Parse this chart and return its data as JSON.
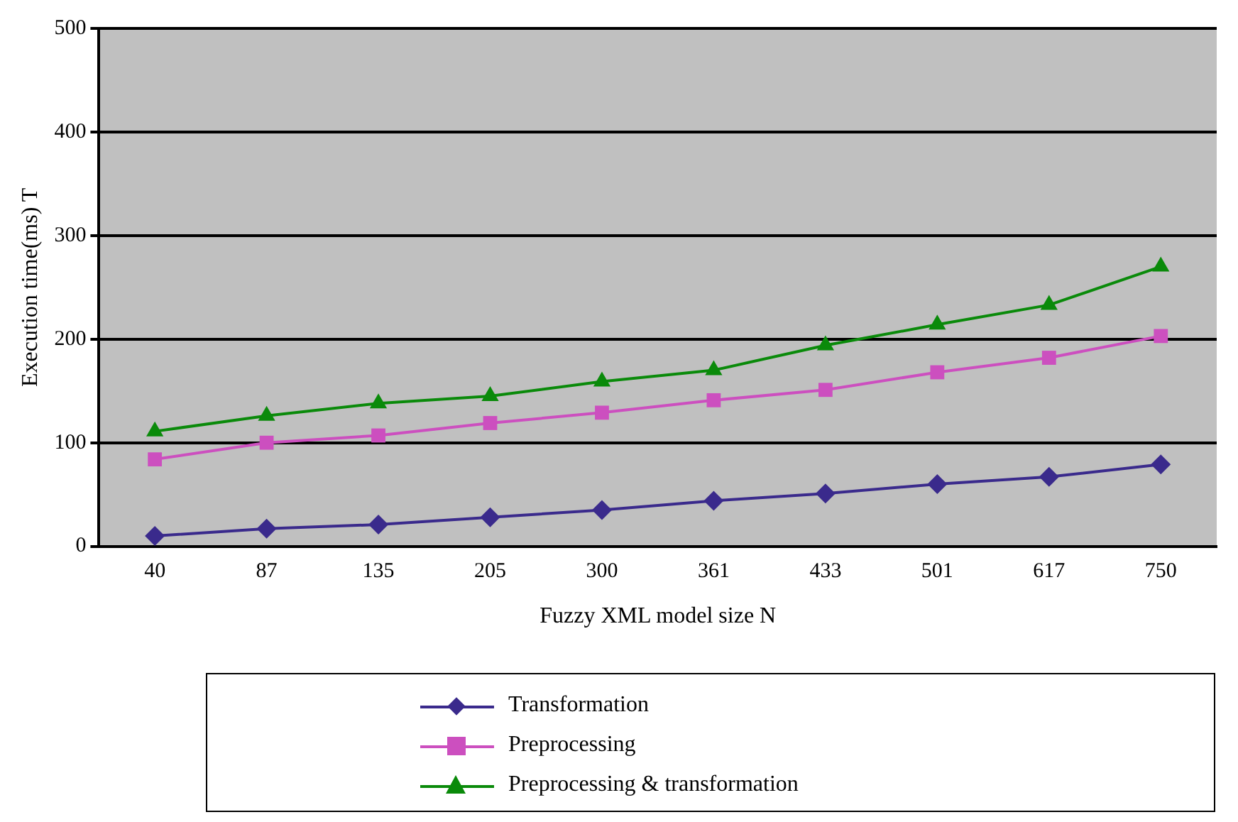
{
  "chart_data": {
    "type": "line",
    "xlabel": "Fuzzy XML model size N",
    "ylabel": "Execution time(ms) T",
    "categories": [
      "40",
      "87",
      "135",
      "205",
      "300",
      "361",
      "433",
      "501",
      "617",
      "750"
    ],
    "ylim": [
      0,
      500
    ],
    "yticks": [
      0,
      100,
      200,
      300,
      400,
      500
    ],
    "grid": "y",
    "legend": "bottom",
    "series": [
      {
        "name": "Transformation",
        "color": "#3a2a8c",
        "marker": "diamond",
        "values": [
          10,
          17,
          21,
          28,
          35,
          44,
          51,
          60,
          67,
          79
        ]
      },
      {
        "name": "Preprocessing",
        "color": "#cc4fbf",
        "marker": "square",
        "values": [
          84,
          100,
          107,
          119,
          129,
          141,
          151,
          168,
          182,
          203
        ]
      },
      {
        "name": "Preprocessing & transformation",
        "color": "#0a8a0a",
        "marker": "triangle",
        "values": [
          111,
          126,
          138,
          145,
          159,
          170,
          194,
          214,
          233,
          270
        ]
      }
    ]
  }
}
